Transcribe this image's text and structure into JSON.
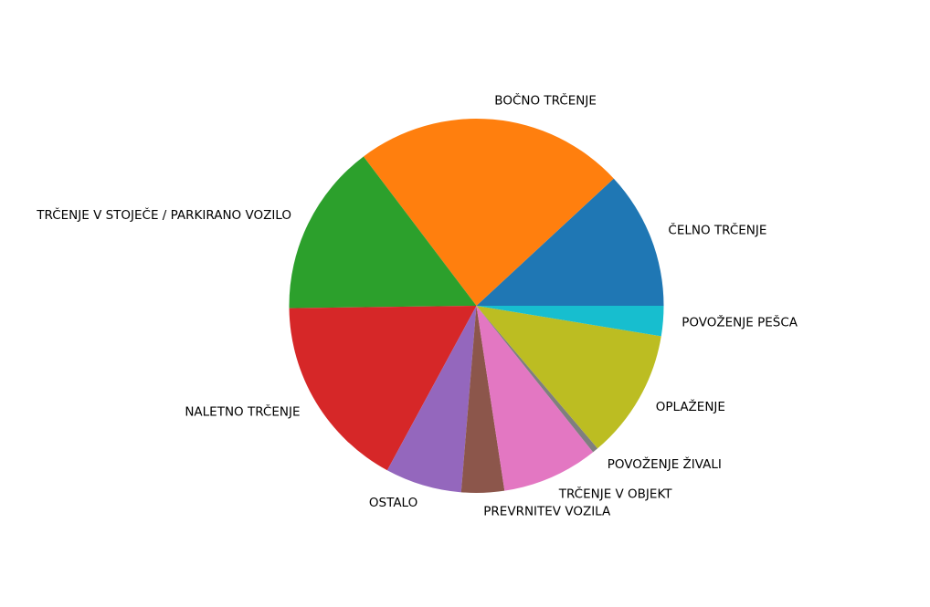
{
  "chart_data": {
    "type": "pie",
    "title": "",
    "start_angle_deg": 0,
    "direction": "counterclockwise",
    "slices": [
      {
        "label": "ČELNO TRČENJE",
        "value": 11.9,
        "color": "#1f77b4"
      },
      {
        "label": "BOČNO TRČENJE",
        "value": 23.4,
        "color": "#ff7f0e"
      },
      {
        "label": "TRČENJE V STOJEČE / PARKIRANO VOZILO",
        "value": 14.9,
        "color": "#2ca02c"
      },
      {
        "label": "NALETNO TRČENJE",
        "value": 16.9,
        "color": "#d62728"
      },
      {
        "label": "OSTALO",
        "value": 6.6,
        "color": "#9467bd"
      },
      {
        "label": "PREVRNITEV VOZILA",
        "value": 3.7,
        "color": "#8c564b"
      },
      {
        "label": "TRČENJE V OBJEKT",
        "value": 8.3,
        "color": "#e377c2"
      },
      {
        "label": "POVOŽENJE ŽIVALI",
        "value": 0.5,
        "color": "#7f7f7f"
      },
      {
        "label": "OPLAŽENJE",
        "value": 11.2,
        "color": "#bcbd22"
      },
      {
        "label": "POVOŽENJE PEŠCA",
        "value": 2.6,
        "color": "#17becf"
      }
    ]
  }
}
